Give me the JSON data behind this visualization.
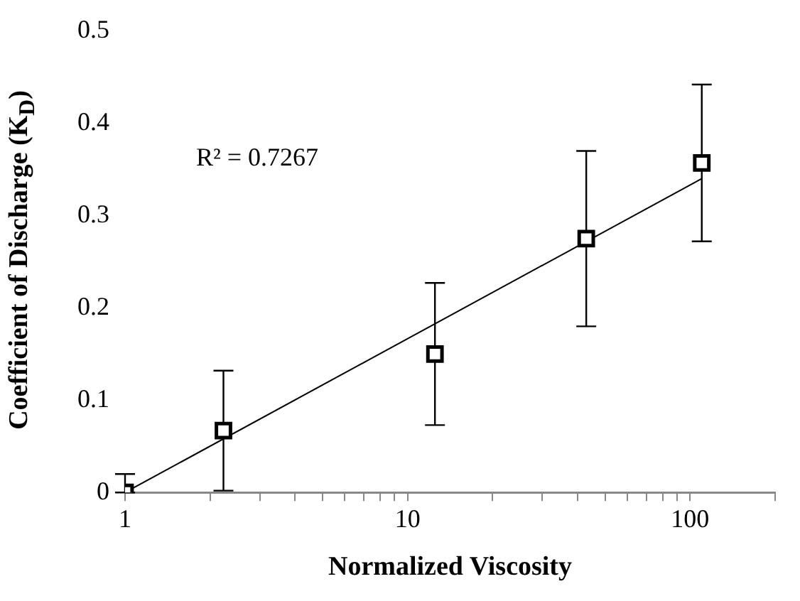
{
  "chart_data": {
    "type": "scatter",
    "xlabel": "Normalized Viscosity",
    "ylabel": "Coefficient of Discharge (K$_{D}$)",
    "log": "x",
    "marker": "square",
    "grid": false,
    "legend": false,
    "xlim": [
      1,
      200
    ],
    "xticks": [
      1,
      {
        "value": 2,
        "label": null
      },
      {
        "value": 3,
        "label": null
      },
      {
        "value": 4,
        "label": null
      },
      {
        "value": 5,
        "label": null
      },
      {
        "value": 6,
        "label": null
      },
      {
        "value": 7,
        "label": null
      },
      {
        "value": 8,
        "label": null
      },
      {
        "value": 9,
        "label": null
      },
      10,
      {
        "value": 20,
        "label": null
      },
      {
        "value": 30,
        "label": null
      },
      {
        "value": 40,
        "label": null
      },
      {
        "value": 50,
        "label": null
      },
      {
        "value": 60,
        "label": null
      },
      {
        "value": 70,
        "label": null
      },
      {
        "value": 80,
        "label": null
      },
      {
        "value": 90,
        "label": null
      },
      100,
      {
        "value": 200,
        "label": null
      }
    ],
    "ylim": [
      0,
      0.5
    ],
    "yticks": [
      0,
      0.1,
      0.2,
      0.3,
      0.4,
      0.5
    ],
    "annotations": [
      "R² = 0.7267"
    ],
    "series": [
      {
        "color": "#000000",
        "x": [
          1,
          2.23,
          12.5,
          42.9,
          110
        ],
        "values": [
          0,
          0.067,
          0.15,
          0.275,
          0.357
        ],
        "errors": [
          [
            0,
            0.02
          ],
          0.065,
          0.077,
          0.095,
          0.085
        ]
      },
      {
        "type": "line",
        "marker": "none",
        "color": "#000000",
        "x": [
          1,
          110
        ],
        "values": [
          0,
          0.34
        ]
      }
    ]
  }
}
